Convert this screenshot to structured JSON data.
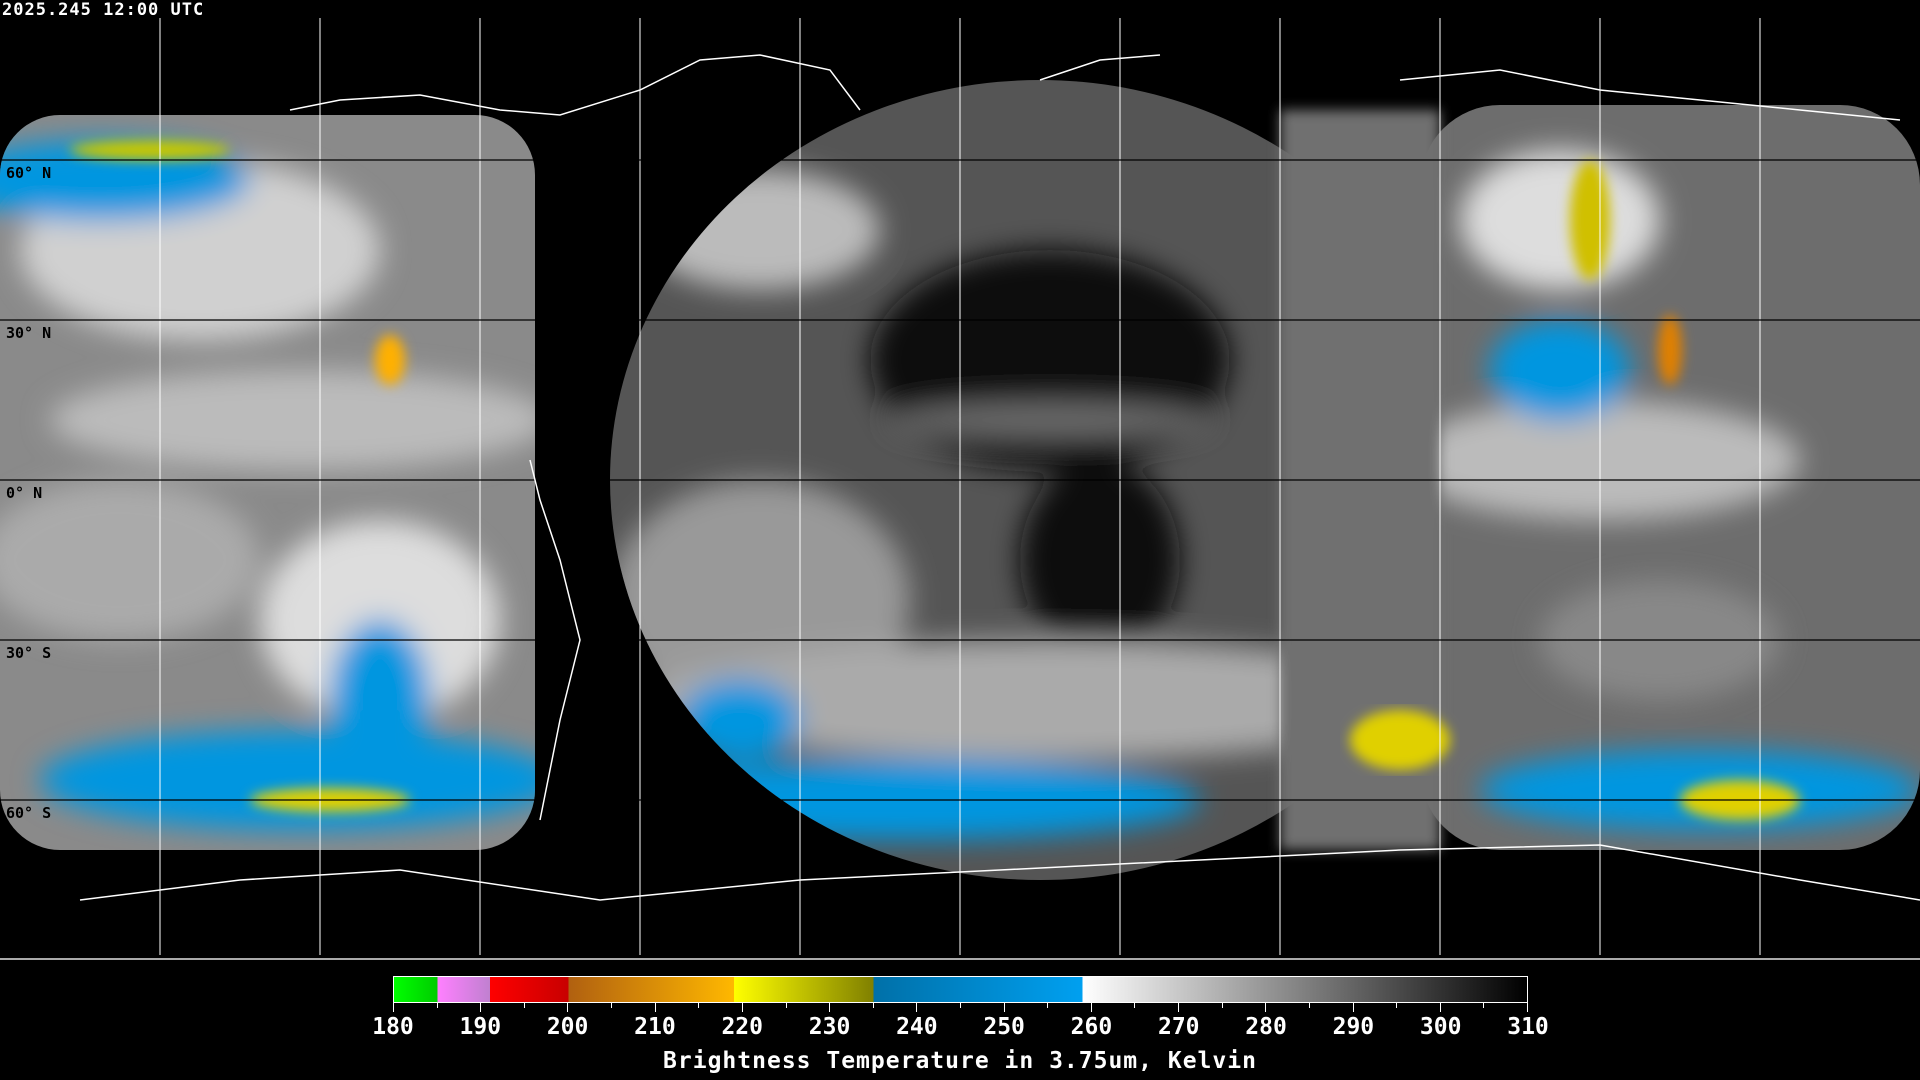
{
  "header": {
    "timestamp": "2025.245 12:00 UTC"
  },
  "map": {
    "projection": "equirectangular",
    "grid_interval_deg": 30,
    "lat_labels": [
      "60° N",
      "30° N",
      "0° N",
      "30° S",
      "60° S"
    ],
    "coastline_color": "#ffffff",
    "background": "#000000"
  },
  "colorbar": {
    "title": "Brightness Temperature in 3.75um, Kelvin",
    "min": 180,
    "max": 310,
    "tick_labels": [
      "180",
      "190",
      "200",
      "210",
      "220",
      "230",
      "240",
      "250",
      "260",
      "270",
      "280",
      "290",
      "300",
      "310"
    ],
    "segments": [
      {
        "from": 180,
        "to": 185,
        "start": "#00ff00",
        "end": "#00cc00"
      },
      {
        "from": 185,
        "to": 191,
        "start": "#ff80ff",
        "end": "#c080d0"
      },
      {
        "from": 191,
        "to": 200,
        "start": "#ff0000",
        "end": "#c80000"
      },
      {
        "from": 200,
        "to": 219,
        "start": "#b06010",
        "end": "#ffb800"
      },
      {
        "from": 219,
        "to": 235,
        "start": "#ffff00",
        "end": "#808000"
      },
      {
        "from": 235,
        "to": 259,
        "start": "#0070a8",
        "end": "#00a0f0"
      },
      {
        "from": 259,
        "to": 310,
        "start": "#ffffff",
        "end": "#000000"
      }
    ]
  }
}
